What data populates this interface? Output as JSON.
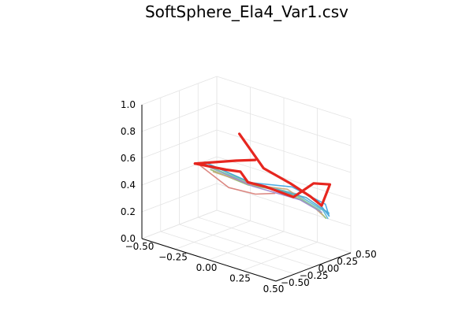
{
  "chart_data": {
    "type": "line",
    "title": "SoftSphere_Ela4_Var1.csv",
    "projection": "3d",
    "grid": true,
    "legend": "none",
    "xlabel": "",
    "ylabel": "",
    "zlabel": "",
    "xlim": [
      -0.5,
      0.5
    ],
    "ylim": [
      -0.5,
      0.5
    ],
    "zlim": [
      0.0,
      1.0
    ],
    "x_ticks": [
      "−0.50",
      "−0.25",
      "0.00",
      "0.25",
      "0.50"
    ],
    "y_ticks": [
      "−0.50",
      "−0.25",
      "0.00",
      "0.25",
      "0.50"
    ],
    "z_ticks": [
      "0.0",
      "0.2",
      "0.4",
      "0.6",
      "0.8",
      "1.0"
    ],
    "series": [
      {
        "color": "#e6261f",
        "values": [
          [
            -0.08,
            0.05,
            0.8
          ],
          [
            0.1,
            0.05,
            0.6
          ],
          [
            0.3,
            0.05,
            0.55
          ],
          [
            0.45,
            0.05,
            0.5
          ],
          [
            0.45,
            0.2,
            0.4
          ],
          [
            0.4,
            0.4,
            0.5
          ],
          [
            0.25,
            0.45,
            0.45
          ],
          [
            0.1,
            0.45,
            0.3
          ],
          [
            -0.05,
            0.35,
            0.35
          ],
          [
            -0.1,
            0.2,
            0.4
          ],
          [
            -0.1,
            0.1,
            0.5
          ],
          [
            -0.15,
            0.0,
            0.52
          ],
          [
            -0.3,
            -0.15,
            0.55
          ]
        ]
      },
      {
        "color": "#e6261f",
        "values": [
          [
            -0.3,
            -0.15,
            0.55
          ],
          [
            -0.05,
            -0.05,
            0.63
          ],
          [
            0.15,
            -0.15,
            0.72
          ]
        ]
      },
      {
        "color": "#3da4e0",
        "values": [
          [
            -0.25,
            -0.1,
            0.55
          ],
          [
            -0.05,
            0.05,
            0.45
          ],
          [
            0.2,
            0.25,
            0.45
          ],
          [
            0.45,
            0.25,
            0.4
          ],
          [
            0.45,
            0.3,
            0.3
          ],
          [
            0.35,
            0.35,
            0.35
          ]
        ]
      },
      {
        "color": "#56b4d8",
        "values": [
          [
            -0.22,
            -0.08,
            0.55
          ],
          [
            -0.02,
            0.08,
            0.45
          ],
          [
            0.25,
            0.22,
            0.42
          ],
          [
            0.45,
            0.22,
            0.36
          ],
          [
            0.44,
            0.3,
            0.28
          ]
        ]
      },
      {
        "color": "#8fb86c",
        "values": [
          [
            -0.2,
            -0.12,
            0.53
          ],
          [
            0.0,
            0.02,
            0.45
          ],
          [
            0.22,
            0.12,
            0.45
          ],
          [
            0.44,
            0.16,
            0.38
          ],
          [
            0.46,
            0.24,
            0.3
          ]
        ]
      },
      {
        "color": "#c9a876",
        "values": [
          [
            -0.18,
            -0.12,
            0.52
          ],
          [
            0.05,
            0.0,
            0.47
          ],
          [
            0.25,
            0.1,
            0.48
          ],
          [
            0.44,
            0.12,
            0.4
          ],
          [
            0.46,
            0.2,
            0.33
          ]
        ]
      },
      {
        "color": "#d87b74",
        "values": [
          [
            -0.28,
            -0.14,
            0.55
          ],
          [
            -0.12,
            -0.02,
            0.4
          ],
          [
            0.0,
            0.12,
            0.36
          ],
          [
            0.1,
            0.2,
            0.38
          ]
        ]
      },
      {
        "color": "#9c8ad0",
        "values": [
          [
            -0.24,
            -0.12,
            0.55
          ],
          [
            0.02,
            0.05,
            0.44
          ],
          [
            0.3,
            0.18,
            0.4
          ],
          [
            0.45,
            0.2,
            0.35
          ]
        ]
      },
      {
        "color": "#7fc9a4",
        "values": [
          [
            -0.22,
            -0.1,
            0.54
          ],
          [
            0.03,
            0.04,
            0.46
          ],
          [
            0.28,
            0.14,
            0.44
          ],
          [
            0.45,
            0.18,
            0.37
          ]
        ]
      },
      {
        "color": "#4aa6ce",
        "values": [
          [
            -0.26,
            -0.09,
            0.56
          ],
          [
            0.0,
            0.1,
            0.44
          ],
          [
            0.3,
            0.26,
            0.4
          ],
          [
            0.46,
            0.28,
            0.33
          ]
        ]
      }
    ]
  }
}
